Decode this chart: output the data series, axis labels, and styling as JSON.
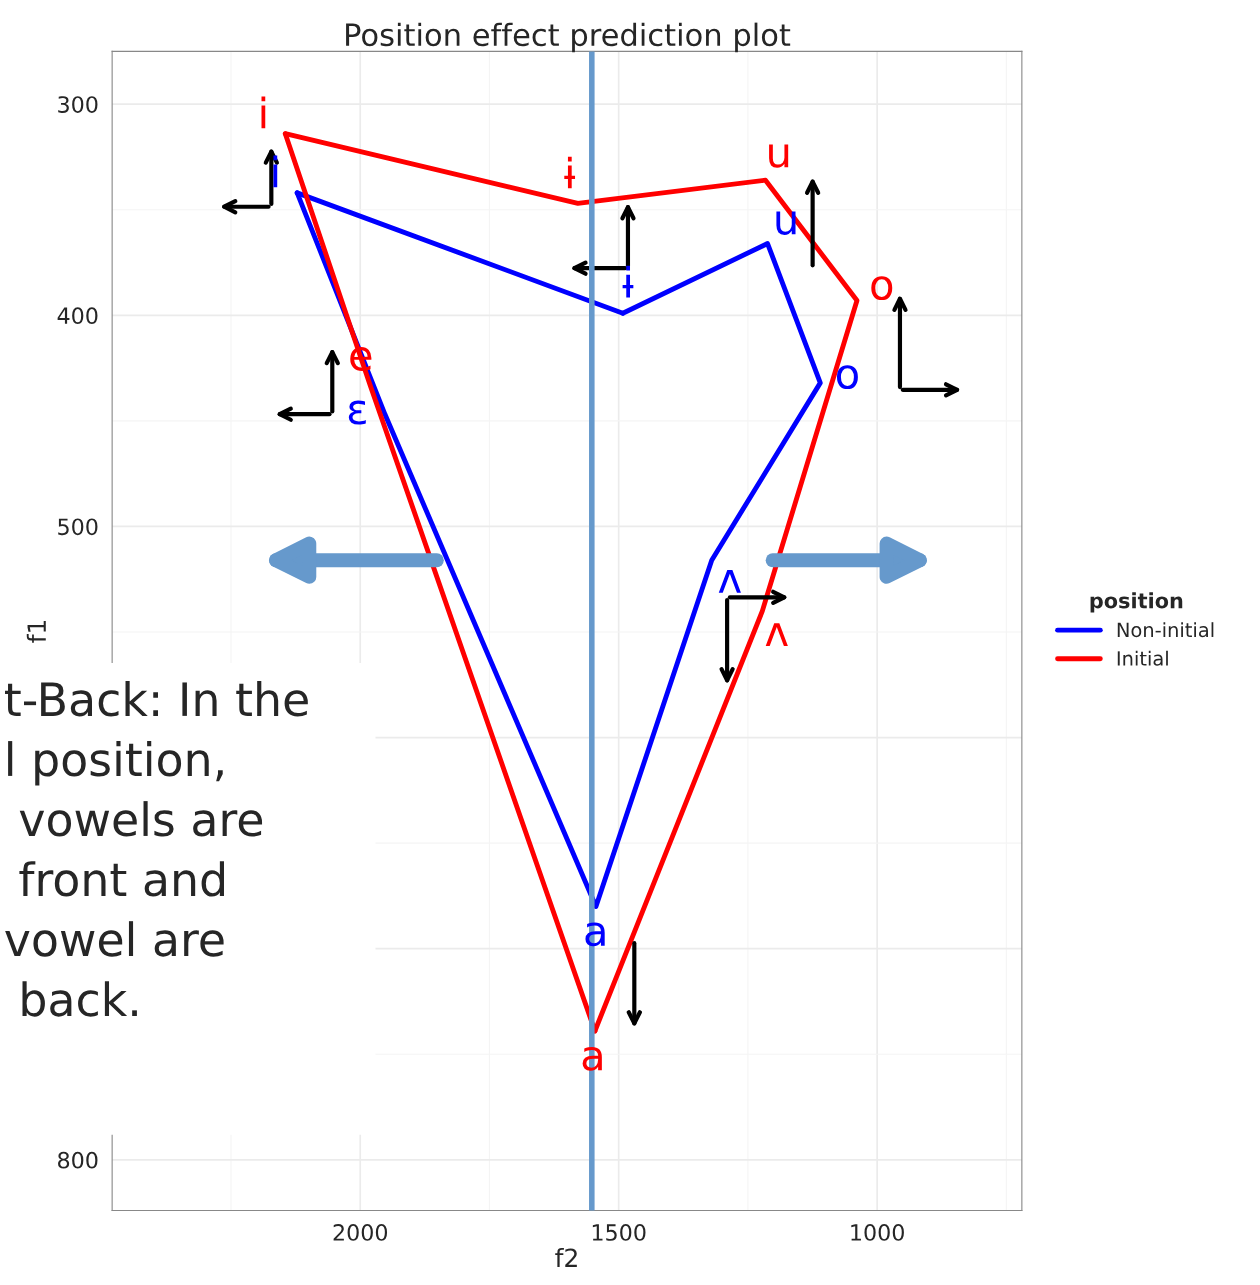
{
  "chart_data": {
    "type": "line",
    "title": "Position effect prediction plot",
    "xlabel": "f2",
    "ylabel": "f1",
    "legend_title": "position",
    "xlim": [
      2480,
      720
    ],
    "ylim": [
      824,
      275
    ],
    "xticks": [
      2000,
      1500,
      1000
    ],
    "yticks": [
      300,
      400,
      500,
      {
        "value": 600,
        "label": null
      },
      {
        "value": 700,
        "label": null
      },
      800
    ],
    "grid": true,
    "legend": "right",
    "marker": "none",
    "line_style": "solid",
    "series": [
      {
        "name": "Non-initial",
        "color": "#0000ff",
        "x": [
          2122,
          1952,
          1544,
          1320,
          1110,
          1212,
          1492
        ],
        "values": [
          342,
          447,
          680,
          516,
          432,
          366,
          399
        ]
      },
      {
        "color": "#0000ff",
        "x": [
          1492,
          2122
        ],
        "values": [
          399,
          342
        ]
      },
      {
        "name": "Initial",
        "color": "#ff0000",
        "x": [
          1546,
          1222,
          1039,
          1216,
          1579,
          2145
        ],
        "values": [
          739,
          540,
          393,
          336,
          347,
          314
        ]
      },
      {
        "color": "#ff0000",
        "x": [
          2145,
          1981,
          1546
        ],
        "values": [
          314,
          433,
          739
        ]
      }
    ],
    "ref_lines": [
      {
        "axis": "x",
        "value": 1552,
        "color": "#6699cc"
      }
    ],
    "annotations": [
      {
        "text": "i",
        "x": 2122,
        "y": 342
      },
      {
        "text": "ɛ",
        "x": 1952,
        "y": 447
      },
      {
        "text": "a",
        "x": 1544,
        "y": 680
      },
      {
        "text": "ʌ",
        "x": 1320,
        "y": 516
      },
      {
        "text": "o",
        "x": 1110,
        "y": 432
      },
      {
        "text": "u",
        "x": 1212,
        "y": 366
      },
      {
        "text": "ɨ",
        "x": 1492,
        "y": 399
      },
      {
        "text": "i",
        "x": 2145,
        "y": 314
      },
      {
        "text": "e",
        "x": 1981,
        "y": 433
      },
      {
        "text": "a",
        "x": 1546,
        "y": 739
      },
      {
        "text": "ʌ",
        "x": 1222,
        "y": 540
      },
      {
        "text": "o",
        "x": 1039,
        "y": 393
      },
      {
        "text": "u",
        "x": 1216,
        "y": 336
      },
      {
        "text": "ɨ",
        "x": 1579,
        "y": 347
      },
      "t-Back: In the\nl position,\n vowels are\n front and\nvowel are\n back."
    ]
  }
}
